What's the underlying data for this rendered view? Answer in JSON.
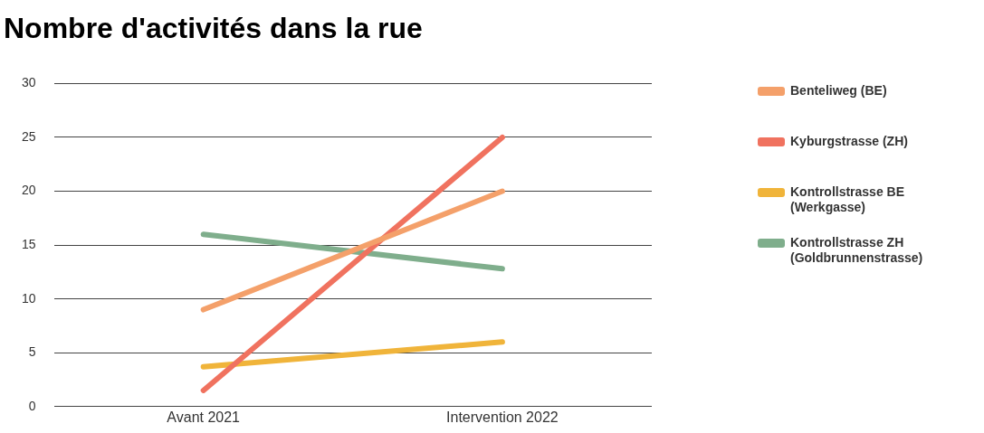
{
  "chart_data": {
    "type": "line",
    "title": "Nombre d'activités dans la rue",
    "categories": [
      "Avant 2021",
      "Intervention 2022"
    ],
    "series": [
      {
        "name": "Benteliweg (BE)",
        "color": "#f4a06a",
        "values": [
          9,
          20
        ]
      },
      {
        "name": "Kyburgstrasse (ZH)",
        "color": "#f0725f",
        "values": [
          1.5,
          25
        ]
      },
      {
        "name": "Kontrollstrasse BE (Werkgasse)",
        "color": "#f0b43a",
        "values": [
          3.7,
          6
        ]
      },
      {
        "name": "Kontrollstrasse ZH (Goldbrunnenstrasse)",
        "color": "#7fae8c",
        "values": [
          16,
          12.8
        ]
      }
    ],
    "ylim": [
      0,
      30
    ],
    "yticks": [
      0,
      5,
      10,
      15,
      20,
      25,
      30
    ],
    "grid": "y",
    "legend": "right",
    "marker": "none",
    "line_style": "solid"
  }
}
